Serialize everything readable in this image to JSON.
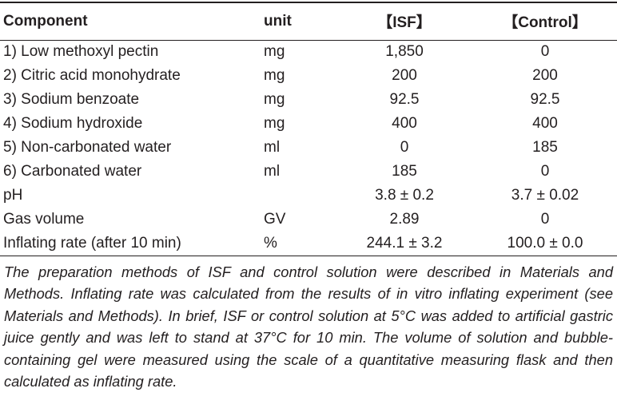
{
  "table": {
    "headers": [
      "Component",
      "unit",
      "【ISF】",
      "【Control】"
    ],
    "rows": [
      [
        "1) Low methoxyl pectin",
        "mg",
        "1,850",
        "0"
      ],
      [
        "2) Citric acid monohydrate",
        "mg",
        "200",
        "200"
      ],
      [
        "3) Sodium benzoate",
        "mg",
        "92.5",
        "92.5"
      ],
      [
        "4) Sodium hydroxide",
        "mg",
        "400",
        "400"
      ],
      [
        "5) Non-carbonated water",
        "ml",
        "0",
        "185"
      ],
      [
        "6) Carbonated water",
        "ml",
        "185",
        "0"
      ],
      [
        "pH",
        null,
        "3.8 ± 0.2",
        "3.7 ± 0.02"
      ],
      [
        "Gas volume",
        "GV",
        "2.89",
        "0"
      ],
      [
        "Inflating rate (after 10 min)",
        "%",
        "244.1 ± 3.2",
        "100.0 ± 0.0"
      ]
    ]
  },
  "footnote": "The preparation methods of ISF and control solution were described in Materials and Methods. Inflating rate was calculated from the results of in vitro inflating experiment (see Materials and Methods). In brief, ISF or control solution at 5°C was added to artificial gastric juice gently and was left to stand at 37°C for 10 min. The volume of solution and bubble-containing gel were measured using the scale of a quantitative measuring flask and then calculated as inflating rate."
}
